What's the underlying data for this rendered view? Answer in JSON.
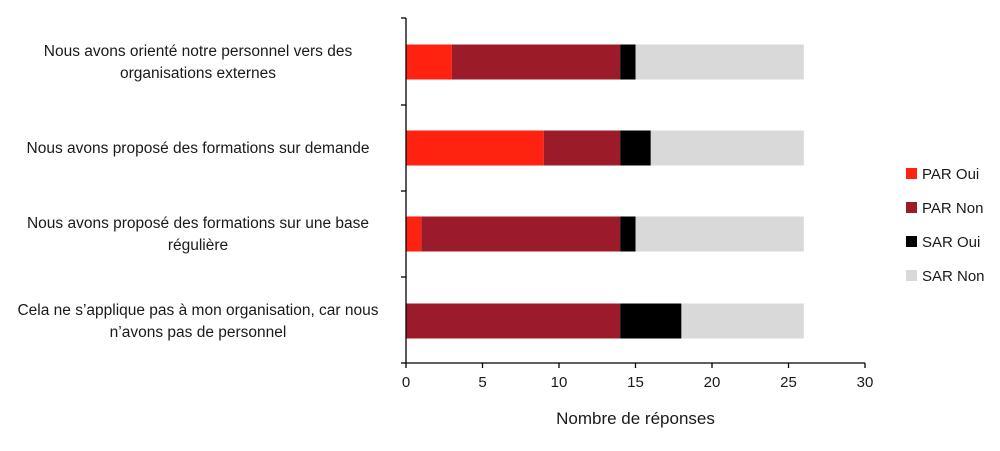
{
  "chart_data": {
    "type": "bar",
    "orientation": "horizontal",
    "stacked": true,
    "categories": [
      [
        "Nous avons orienté notre personnel vers des",
        "organisations externes"
      ],
      [
        "Nous avons proposé des formations sur demande"
      ],
      [
        "Nous avons proposé des formations sur une base",
        "régulière"
      ],
      [
        "Cela ne s’applique pas à mon organisation, car nous",
        "n’avons pas de personnel"
      ]
    ],
    "series": [
      {
        "name": "PAR Oui",
        "color": "#ff2211",
        "values": [
          3,
          9,
          1,
          0
        ]
      },
      {
        "name": "PAR Non",
        "color": "#9b1b2b",
        "values": [
          11,
          5,
          13,
          14
        ]
      },
      {
        "name": "SAR Oui",
        "color": "#000000",
        "values": [
          1,
          2,
          1,
          4
        ]
      },
      {
        "name": "SAR Non",
        "color": "#d9d9d9",
        "values": [
          11,
          10,
          11,
          8
        ]
      }
    ],
    "xlabel": "Nombre de réponses",
    "ylabel": "",
    "xlim": [
      0,
      30
    ],
    "xticks": [
      0,
      5,
      10,
      15,
      20,
      25,
      30
    ],
    "grid": false,
    "legend_position": "right"
  }
}
